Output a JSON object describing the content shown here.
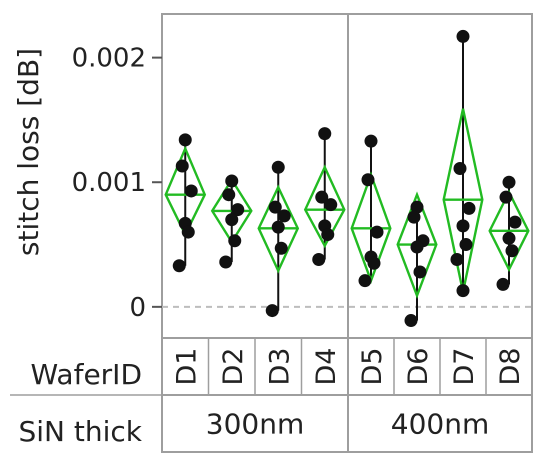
{
  "chart_data": {
    "type": "scatter",
    "ylabel": "stitch loss [dB]",
    "ylim": [
      -0.00025,
      0.00235
    ],
    "yticks": [
      {
        "value": 0.002,
        "label": "0.002"
      },
      {
        "value": 0.001,
        "label": "0.001"
      },
      {
        "value": 0,
        "label": "0"
      }
    ],
    "reference_line": {
      "value": 0,
      "style": "dashed"
    },
    "row_headers": {
      "wafer": "WaferID",
      "sin": "SiN thick"
    },
    "groups": [
      {
        "label": "300nm",
        "categories": [
          "D1",
          "D2",
          "D3",
          "D4"
        ]
      },
      {
        "label": "400nm",
        "categories": [
          "D5",
          "D6",
          "D7",
          "D8"
        ]
      }
    ],
    "diamond_color": "#22bb22",
    "point_color": "#111111",
    "series": [
      {
        "category": "D1",
        "mean": 0.0009,
        "ci": [
          0.00058,
          0.00127
        ],
        "points": [
          0.00134,
          0.00113,
          0.00093,
          0.00067,
          0.0006,
          0.00033
        ]
      },
      {
        "category": "D2",
        "mean": 0.00077,
        "ci": [
          0.00052,
          0.00102
        ],
        "points": [
          0.00101,
          0.0009,
          0.00078,
          0.0007,
          0.00053,
          0.00036
        ]
      },
      {
        "category": "D3",
        "mean": 0.00063,
        "ci": [
          0.00029,
          0.00096
        ],
        "points": [
          0.00112,
          0.0008,
          0.00073,
          0.00064,
          0.00047,
          -3e-05
        ]
      },
      {
        "category": "D4",
        "mean": 0.00078,
        "ci": [
          0.00049,
          0.00112
        ],
        "points": [
          0.00139,
          0.00088,
          0.00082,
          0.00065,
          0.00058,
          0.00038
        ]
      },
      {
        "category": "D5",
        "mean": 0.00063,
        "ci": [
          0.00021,
          0.00106
        ],
        "points": [
          0.00133,
          0.00102,
          0.0006,
          0.0004,
          0.00035,
          0.00021
        ]
      },
      {
        "category": "D6",
        "mean": 0.0005,
        "ci": [
          9e-05,
          0.0009
        ],
        "points": [
          0.0008,
          0.00072,
          0.00053,
          0.00048,
          0.00028,
          -0.00011
        ]
      },
      {
        "category": "D7",
        "mean": 0.00086,
        "ci": [
          0.00012,
          0.00159
        ],
        "points": [
          0.00217,
          0.00111,
          0.00079,
          0.00065,
          0.0005,
          0.00038,
          0.00013
        ]
      },
      {
        "category": "D8",
        "mean": 0.00061,
        "ci": [
          0.0003,
          0.00092
        ],
        "points": [
          0.001,
          0.00088,
          0.00068,
          0.00055,
          0.00045,
          0.00018
        ]
      }
    ]
  }
}
